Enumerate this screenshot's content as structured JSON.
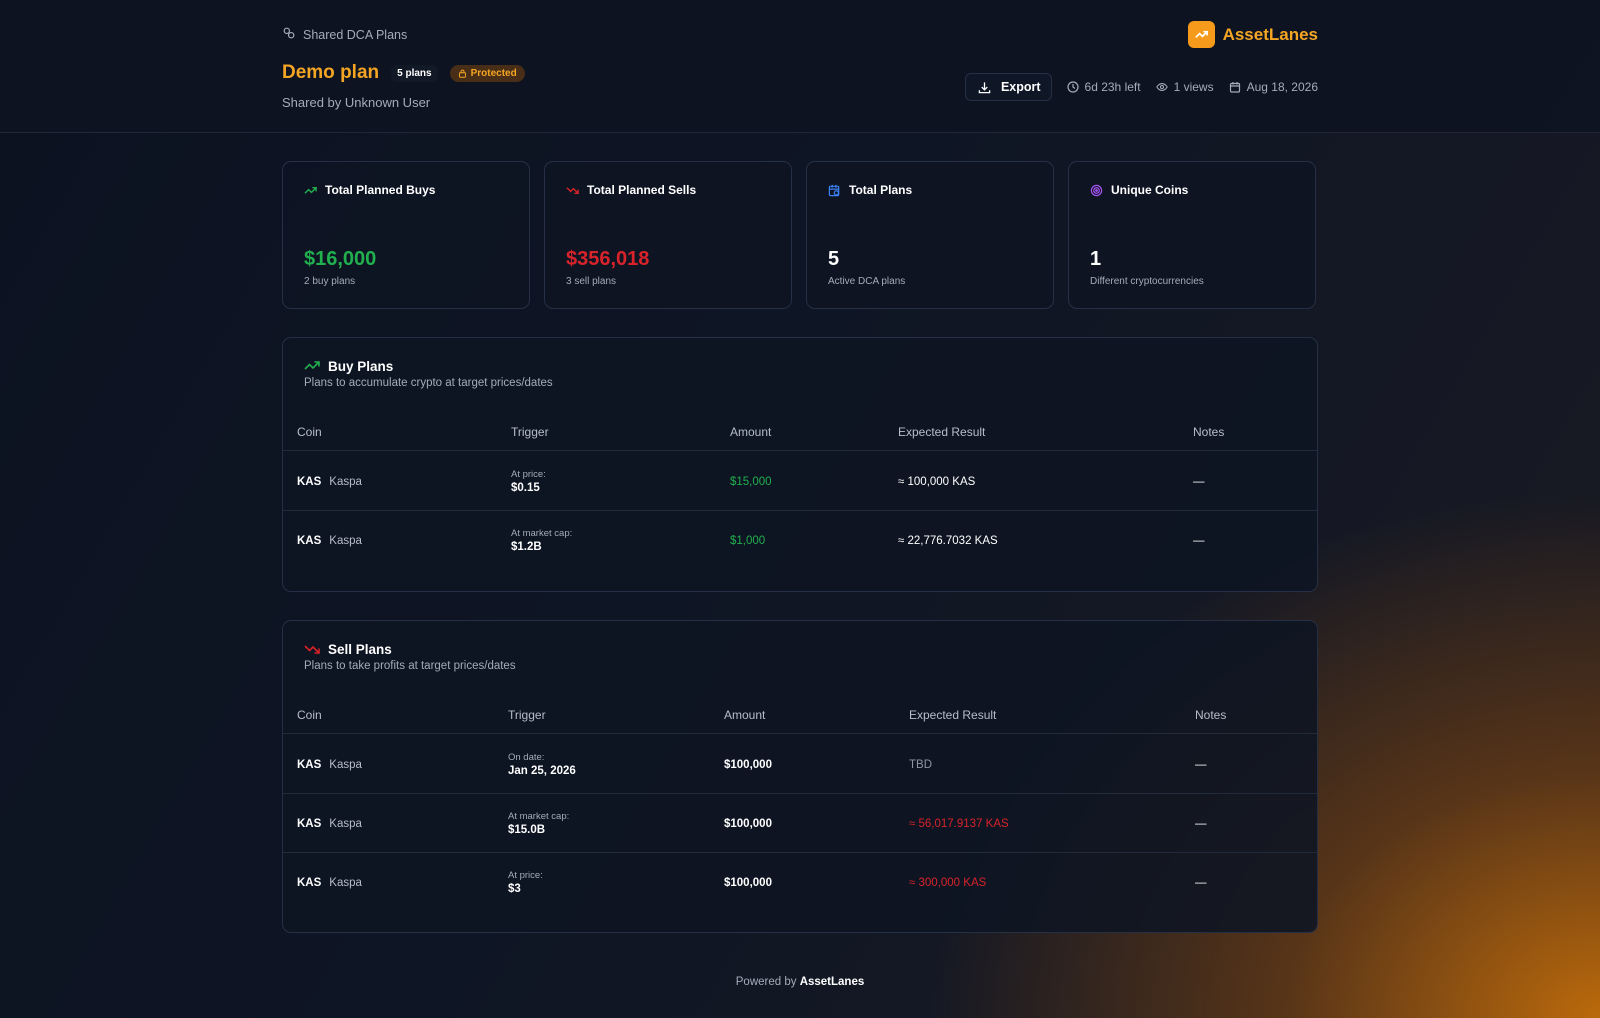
{
  "header": {
    "breadcrumb": "Shared DCA Plans",
    "brand": "AssetLanes",
    "title": "Demo plan",
    "plans_badge": "5 plans",
    "protected_badge": "Protected",
    "shared_by": "Shared by Unknown User",
    "export_label": "Export",
    "time_left": "6d 23h left",
    "views": "1 views",
    "date": "Aug 18, 2026"
  },
  "cards": [
    {
      "title": "Total Planned Buys",
      "value": "$16,000",
      "sub": "2 buy plans",
      "icon": "trending-up-icon",
      "color": "#22b04f"
    },
    {
      "title": "Total Planned Sells",
      "value": "$356,018",
      "sub": "3 sell plans",
      "icon": "trending-down-icon",
      "color": "#d8232a"
    },
    {
      "title": "Total Plans",
      "value": "5",
      "sub": "Active DCA plans",
      "icon": "calendar-clock-icon",
      "color": "#ffffff"
    },
    {
      "title": "Unique Coins",
      "value": "1",
      "sub": "Different cryptocurrencies",
      "icon": "target-icon",
      "color": "#ffffff"
    }
  ],
  "buy_plans": {
    "title": "Buy Plans",
    "subtitle": "Plans to accumulate crypto at target prices/dates",
    "columns": [
      "Coin",
      "Trigger",
      "Amount",
      "Expected Result",
      "Notes"
    ],
    "rows": [
      {
        "symbol": "KAS",
        "name": "Kaspa",
        "trigger_label": "At price:",
        "trigger_value": "$0.15",
        "amount": "$15,000",
        "result": "≈ 100,000 KAS",
        "notes": "—"
      },
      {
        "symbol": "KAS",
        "name": "Kaspa",
        "trigger_label": "At market cap:",
        "trigger_value": "$1.2B",
        "amount": "$1,000",
        "result": "≈ 22,776.7032 KAS",
        "notes": "—"
      }
    ]
  },
  "sell_plans": {
    "title": "Sell Plans",
    "subtitle": "Plans to take profits at target prices/dates",
    "columns": [
      "Coin",
      "Trigger",
      "Amount",
      "Expected Result",
      "Notes"
    ],
    "rows": [
      {
        "symbol": "KAS",
        "name": "Kaspa",
        "trigger_label": "On date:",
        "trigger_value": "Jan 25, 2026",
        "amount": "$100,000",
        "result": "TBD",
        "notes": "—"
      },
      {
        "symbol": "KAS",
        "name": "Kaspa",
        "trigger_label": "At market cap:",
        "trigger_value": "$15.0B",
        "amount": "$100,000",
        "result": "≈ 56,017.9137 KAS",
        "notes": "—"
      },
      {
        "symbol": "KAS",
        "name": "Kaspa",
        "trigger_label": "At price:",
        "trigger_value": "$3",
        "amount": "$100,000",
        "result": "≈ 300,000 KAS",
        "notes": "—"
      }
    ]
  },
  "footer": {
    "prefix": "Powered by",
    "brand": "AssetLanes"
  },
  "colors": {
    "accent": "#f5a524",
    "buy": "#22b04f",
    "sell": "#d8232a",
    "blue": "#3b82f6",
    "purple": "#a855f7"
  }
}
